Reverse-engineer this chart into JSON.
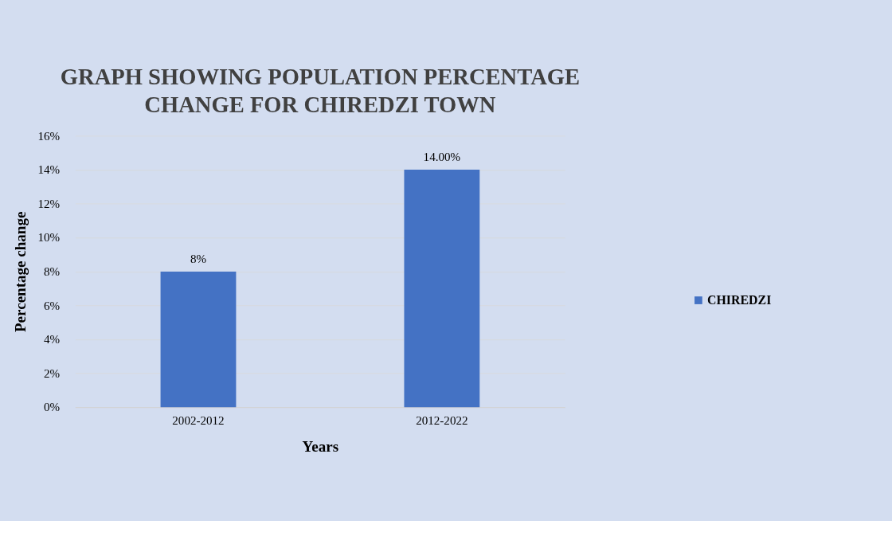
{
  "chart_data": {
    "type": "bar",
    "title": "GRAPH SHOWING POPULATION PERCENTAGE CHANGE FOR CHIREDZI TOWN",
    "xlabel": "Years",
    "ylabel": "Percentage change",
    "categories": [
      "2002-2012",
      "2012-2022"
    ],
    "series": [
      {
        "name": "CHIREDZI",
        "color": "#4472c4",
        "values": [
          8,
          14
        ]
      }
    ],
    "value_labels": [
      "8%",
      "14.00%"
    ],
    "ylim": [
      0,
      16
    ],
    "yticks": [
      {
        "value": 0,
        "label": "0%"
      },
      {
        "value": 2,
        "label": "2%"
      },
      {
        "value": 4,
        "label": "4%"
      },
      {
        "value": 6,
        "label": "6%"
      },
      {
        "value": 8,
        "label": "8%"
      },
      {
        "value": 10,
        "label": "10%"
      },
      {
        "value": 12,
        "label": "12%"
      },
      {
        "value": 14,
        "label": "14%"
      },
      {
        "value": 16,
        "label": "16%"
      }
    ],
    "grid": "y",
    "legend": "right"
  }
}
